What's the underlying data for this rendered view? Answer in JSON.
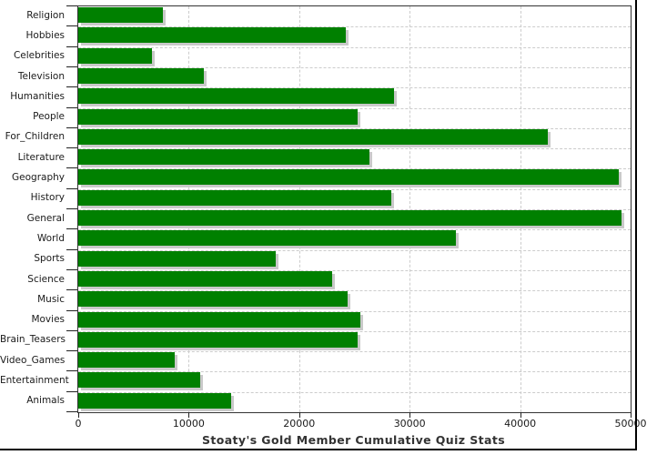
{
  "title": "Stoaty's Gold Member Cumulative Quiz Stats",
  "chart_data": {
    "type": "bar",
    "orientation": "horizontal",
    "title": "Stoaty's Gold Member Cumulative Quiz Stats",
    "categories": [
      "Religion",
      "Hobbies",
      "Celebrities",
      "Television",
      "Humanities",
      "People",
      "For_Children",
      "Literature",
      "Geography",
      "History",
      "General",
      "World",
      "Sports",
      "Science",
      "Music",
      "Movies",
      "Brain_Teasers",
      "Video_Games",
      "Entertainment",
      "Animals"
    ],
    "values": [
      7700,
      24200,
      6700,
      11400,
      28600,
      25300,
      42500,
      26400,
      48900,
      28300,
      49200,
      34200,
      17900,
      23000,
      24400,
      25500,
      25300,
      8700,
      11000,
      13800
    ],
    "xlabel": "",
    "ylabel": "",
    "xlim": [
      0,
      50000
    ],
    "x_ticks": [
      0,
      10000,
      20000,
      30000,
      40000,
      50000
    ],
    "x_tick_labels": [
      "0",
      "10000",
      "20000",
      "30000",
      "40000",
      "50000"
    ],
    "grid": "dashed",
    "legend": "none",
    "bar_color": "#008000",
    "bar_shadow_color": "#c9c9c9",
    "gridline_color": "#cccccc",
    "plot_border_color": "#333333",
    "text_color": "#1a1a1a"
  }
}
